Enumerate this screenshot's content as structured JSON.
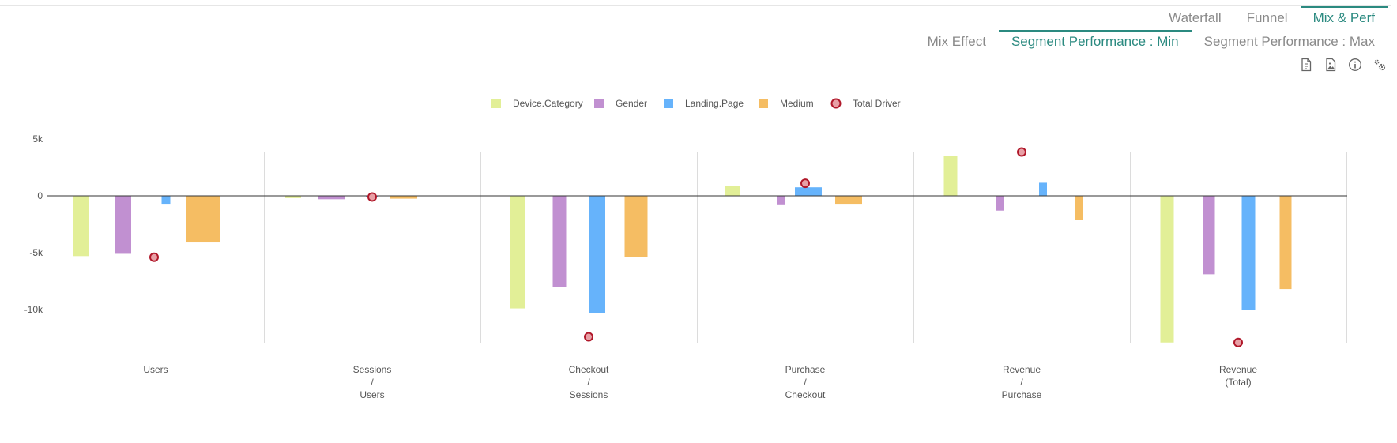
{
  "tabs": [
    {
      "label": "Waterfall",
      "active": false
    },
    {
      "label": "Funnel",
      "active": false
    },
    {
      "label": "Mix & Perf",
      "active": true
    }
  ],
  "subtabs": [
    {
      "label": "Mix Effect",
      "active": false
    },
    {
      "label": "Segment Performance : Min",
      "active": true
    },
    {
      "label": "Segment Performance : Max",
      "active": false
    }
  ],
  "toolbar": {
    "icons": [
      "document-icon",
      "image-export-icon",
      "info-icon",
      "settings-gears-icon"
    ]
  },
  "chart_data": {
    "type": "bar",
    "categories": [
      [
        "Users"
      ],
      [
        "Sessions",
        "/",
        "Users"
      ],
      [
        "Checkout",
        "/",
        "Sessions"
      ],
      [
        "Purchase",
        "/",
        "Checkout"
      ],
      [
        "Revenue",
        "/",
        "Purchase"
      ],
      [
        "Revenue",
        "(Total)"
      ]
    ],
    "series": [
      {
        "name": "Device.Category",
        "color": "#e2ef97",
        "values": [
          -5300,
          -200,
          -9900,
          850,
          3500,
          -12900
        ]
      },
      {
        "name": "Gender",
        "color": "#c190d1",
        "values": [
          -5100,
          -300,
          -8000,
          -750,
          -1300,
          -6900
        ]
      },
      {
        "name": "Landing.Page",
        "color": "#66b3fb",
        "values": [
          -700,
          -100,
          -10300,
          750,
          1150,
          -10000
        ]
      },
      {
        "name": "Medium",
        "color": "#f5bd63",
        "values": [
          -4100,
          -250,
          -5400,
          -700,
          -2100,
          -8200
        ]
      }
    ],
    "driver": {
      "name": "Total Driver",
      "color": "#e8a0a6",
      "stroke": "#b0182a",
      "values": [
        -5400,
        -100,
        -12400,
        1100,
        3850,
        -12900
      ]
    },
    "yticks": [
      5000,
      0,
      -5000,
      -10000
    ],
    "ytick_labels": [
      "5k",
      "0",
      "-5k",
      "-10k"
    ],
    "ylim": [
      -12900,
      3900
    ],
    "legend_position": "top-center",
    "grid": false
  }
}
